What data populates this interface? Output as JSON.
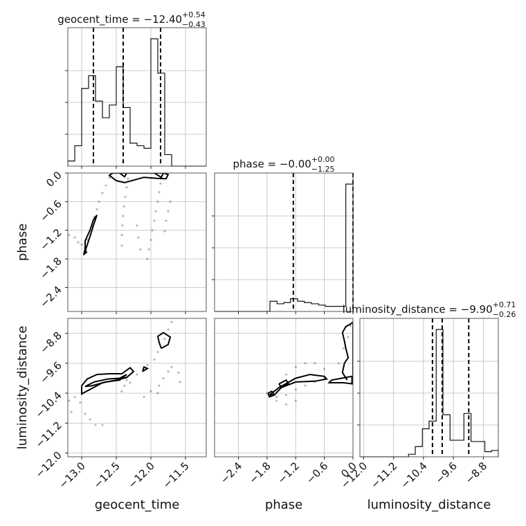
{
  "chart_data": {
    "type": "corner",
    "parameters": [
      "geocent_time",
      "phase",
      "luminosity_distance"
    ],
    "axis_labels": {
      "geocent_time": "geocent_time",
      "phase": "phase",
      "luminosity_distance": "luminosity_distance"
    },
    "ranges": {
      "geocent_time": [
        -13.2,
        -11.2
      ],
      "phase": [
        -2.9,
        0.0
      ],
      "luminosity_distance": [
        -12.1,
        -8.4
      ]
    },
    "ticks": {
      "geocent_time": {
        "values": [
          -13.0,
          -12.5,
          -12.0,
          -11.5
        ],
        "labels": [
          "−13.0",
          "−12.5",
          "−12.0",
          "−11.5"
        ]
      },
      "phase": {
        "values": [
          -2.4,
          -1.8,
          -1.2,
          -0.6,
          0.0
        ],
        "labels": [
          "−2.4",
          "−1.8",
          "−1.2",
          "−0.6",
          "0.0"
        ]
      },
      "luminosity_distance": {
        "values": [
          -12.0,
          -11.2,
          -10.4,
          -9.6,
          -8.8
        ],
        "labels": [
          "−12.0",
          "−11.2",
          "−10.4",
          "−9.6",
          "−8.8"
        ]
      }
    },
    "grid": true,
    "titles": [
      {
        "param": "geocent_time",
        "lead": "geocent_time = −12.40",
        "plus": "+0.54",
        "minus": "−0.43"
      },
      {
        "param": "phase",
        "lead": "phase = −0.00",
        "plus": "+0.00",
        "minus": "−1.25"
      },
      {
        "param": "luminosity_distance",
        "lead": "luminosity_distance = −9.90",
        "plus": "+0.71",
        "minus": "−0.26"
      }
    ],
    "marginals": [
      {
        "param": "geocent_time",
        "bin_edges": [
          -13.2,
          -13.1,
          -13.0,
          -12.9,
          -12.8,
          -12.7,
          -12.6,
          -12.5,
          -12.4,
          -12.3,
          -12.2,
          -12.1,
          -12.0,
          -11.9,
          -11.8,
          -11.7,
          -11.6,
          -11.5,
          -11.4,
          -11.3,
          -11.2
        ],
        "counts": [
          0.04,
          0.16,
          0.61,
          0.71,
          0.51,
          0.38,
          0.48,
          0.78,
          0.46,
          0.18,
          0.16,
          0.14,
          1.0,
          0.73,
          0.09,
          0.0,
          0.0,
          0.0,
          0.0,
          0.0
        ],
        "quantiles": [
          -12.83,
          -12.4,
          -11.86
        ]
      },
      {
        "param": "phase",
        "bin_edges": [
          -2.9,
          -2.76,
          -2.61,
          -2.47,
          -2.32,
          -2.17,
          -2.03,
          -1.89,
          -1.74,
          -1.59,
          -1.45,
          -1.31,
          -1.16,
          -1.02,
          -0.87,
          -0.72,
          -0.58,
          -0.43,
          -0.29,
          -0.15,
          0.0
        ],
        "counts": [
          0.0,
          0.0,
          0.0,
          0.0,
          0.0,
          0.0,
          0.0,
          0.0,
          0.08,
          0.06,
          0.07,
          0.1,
          0.08,
          0.07,
          0.06,
          0.05,
          0.04,
          0.04,
          0.04,
          1.0
        ],
        "quantiles": [
          -1.25,
          0.0
        ]
      },
      {
        "param": "luminosity_distance",
        "bin_edges": [
          -12.1,
          -11.91,
          -11.73,
          -11.54,
          -11.36,
          -11.17,
          -10.99,
          -10.8,
          -10.62,
          -10.43,
          -10.25,
          -10.06,
          -9.88,
          -9.69,
          -9.51,
          -9.32,
          -9.13,
          -8.95,
          -8.76,
          -8.58,
          -8.4
        ],
        "counts": [
          0.0,
          0.0,
          0.0,
          0.0,
          0.0,
          0.0,
          0.0,
          0.02,
          0.08,
          0.22,
          0.28,
          1.0,
          0.33,
          0.13,
          0.13,
          0.34,
          0.12,
          0.12,
          0.04,
          0.05
        ],
        "quantiles": [
          -10.16,
          -9.9,
          -9.19
        ]
      }
    ],
    "joint": [
      {
        "x": "geocent_time",
        "y": "phase",
        "contours": [
          {
            "x": [
              -12.95,
              -12.95,
              -12.88,
              -12.83,
              -12.78,
              -12.83,
              -12.88,
              -12.93,
              -12.97,
              -12.95
            ],
            "y": [
              -1.6,
              -1.42,
              -1.2,
              -0.98,
              -0.88,
              -1.1,
              -1.33,
              -1.55,
              -1.72,
              -1.6
            ]
          },
          {
            "x": [
              -12.97,
              -12.95,
              -12.93,
              -12.97
            ],
            "y": [
              -1.7,
              -1.6,
              -1.66,
              -1.7
            ]
          },
          {
            "x": [
              -12.55,
              -12.6,
              -12.5,
              -12.38,
              -12.25,
              -12.1,
              -11.92,
              -11.78,
              -11.75,
              -11.82,
              -12.2,
              -12.55
            ],
            "y": [
              0.0,
              -0.05,
              -0.16,
              -0.2,
              -0.15,
              -0.09,
              -0.11,
              -0.12,
              -0.03,
              0.0,
              0.0,
              0.0
            ]
          },
          {
            "x": [
              -12.45,
              -12.35,
              -12.38,
              -12.45
            ],
            "y": [
              0.0,
              0.0,
              -0.08,
              0.0
            ]
          },
          {
            "x": [
              -11.95,
              -11.82,
              -11.85,
              -11.95
            ],
            "y": [
              0.0,
              0.0,
              -0.09,
              0.0
            ]
          }
        ],
        "scatter": [
          [
            -13.18,
            -1.3
          ],
          [
            -13.1,
            -1.35
          ],
          [
            -13.05,
            -1.45
          ],
          [
            -13.0,
            -1.5
          ],
          [
            -12.92,
            -1.4
          ],
          [
            -12.85,
            -1.1
          ],
          [
            -12.82,
            -0.92
          ],
          [
            -12.78,
            -0.76
          ],
          [
            -12.75,
            -0.6
          ],
          [
            -12.7,
            -0.42
          ],
          [
            -12.65,
            -0.26
          ],
          [
            -12.6,
            -0.1
          ],
          [
            -12.42,
            -1.52
          ],
          [
            -12.42,
            -1.3
          ],
          [
            -12.41,
            -1.1
          ],
          [
            -12.4,
            -0.9
          ],
          [
            -12.39,
            -0.7
          ],
          [
            -12.37,
            -0.5
          ],
          [
            -12.35,
            -0.3
          ],
          [
            -12.33,
            -0.12
          ],
          [
            -12.05,
            -1.8
          ],
          [
            -12.03,
            -1.6
          ],
          [
            -12.0,
            -1.4
          ],
          [
            -11.98,
            -1.2
          ],
          [
            -11.95,
            -1.0
          ],
          [
            -11.93,
            -0.8
          ],
          [
            -11.9,
            -0.6
          ],
          [
            -11.88,
            -0.4
          ],
          [
            -11.86,
            -0.22
          ],
          [
            -11.8,
            -1.22
          ],
          [
            -11.78,
            -1.0
          ],
          [
            -11.75,
            -0.8
          ],
          [
            -11.72,
            -0.6
          ],
          [
            -12.2,
            -1.1
          ],
          [
            -12.18,
            -1.35
          ],
          [
            -12.15,
            -1.6
          ]
        ]
      },
      {
        "x": "geocent_time",
        "y": "luminosity_distance",
        "contours": [
          {
            "x": [
              -13.0,
              -12.92,
              -12.78,
              -12.6,
              -12.42,
              -12.3,
              -12.25,
              -12.35,
              -12.5,
              -12.7,
              -12.88,
              -13.0,
              -13.0
            ],
            "y": [
              -10.2,
              -10.02,
              -9.9,
              -9.88,
              -9.88,
              -9.72,
              -9.82,
              -9.98,
              -10.05,
              -10.12,
              -10.3,
              -10.42,
              -10.2
            ]
          },
          {
            "x": [
              -12.95,
              -12.82,
              -12.62,
              -12.45,
              -12.35,
              -12.45,
              -12.65,
              -12.85,
              -12.95
            ],
            "y": [
              -10.22,
              -10.1,
              -10.02,
              -10.0,
              -9.9,
              -10.05,
              -10.1,
              -10.2,
              -10.22
            ]
          },
          {
            "x": [
              -12.12,
              -12.05,
              -12.1,
              -12.12
            ],
            "y": [
              -9.82,
              -9.74,
              -9.7,
              -9.82
            ]
          },
          {
            "x": [
              -11.85,
              -11.75,
              -11.72,
              -11.82,
              -11.9,
              -11.88,
              -11.85
            ],
            "y": [
              -9.2,
              -9.1,
              -8.9,
              -8.78,
              -8.88,
              -9.05,
              -9.2
            ]
          }
        ],
        "scatter": [
          [
            -13.15,
            -10.9
          ],
          [
            -13.18,
            -10.6
          ],
          [
            -13.1,
            -10.5
          ],
          [
            -13.02,
            -10.65
          ],
          [
            -12.95,
            -10.95
          ],
          [
            -12.88,
            -11.1
          ],
          [
            -12.8,
            -11.25
          ],
          [
            -12.7,
            -11.25
          ],
          [
            -12.42,
            -10.35
          ],
          [
            -12.38,
            -10.2
          ],
          [
            -12.35,
            -10.05
          ],
          [
            -12.3,
            -10.12
          ],
          [
            -12.2,
            -9.9
          ],
          [
            -12.05,
            -9.65
          ],
          [
            -11.95,
            -9.5
          ],
          [
            -11.9,
            -9.3
          ],
          [
            -11.8,
            -8.95
          ],
          [
            -11.75,
            -8.7
          ],
          [
            -11.7,
            -8.5
          ],
          [
            -11.9,
            -10.4
          ],
          [
            -11.88,
            -10.2
          ],
          [
            -11.82,
            -10.0
          ],
          [
            -11.75,
            -9.82
          ],
          [
            -11.7,
            -9.7
          ],
          [
            -11.6,
            -9.85
          ],
          [
            -11.58,
            -10.1
          ],
          [
            -12.1,
            -10.5
          ],
          [
            -12.0,
            -10.35
          ]
        ]
      },
      {
        "x": "phase",
        "y": "luminosity_distance",
        "contours": [
          {
            "x": [
              -1.75,
              -1.55,
              -1.2,
              -0.9,
              -0.6,
              -0.55,
              -0.8,
              -1.2,
              -1.5,
              -1.65,
              -1.75
            ],
            "y": [
              -10.45,
              -10.25,
              -10.0,
              -9.9,
              -9.95,
              -10.02,
              -10.08,
              -10.1,
              -10.25,
              -10.45,
              -10.45
            ]
          },
          {
            "x": [
              -1.55,
              -1.4,
              -1.35,
              -1.5,
              -1.55
            ],
            "y": [
              -10.15,
              -10.05,
              -10.15,
              -10.25,
              -10.15
            ]
          },
          {
            "x": [
              -1.78,
              -1.7,
              -1.65,
              -1.75,
              -1.78
            ],
            "y": [
              -10.4,
              -10.35,
              -10.45,
              -10.5,
              -10.4
            ]
          },
          {
            "x": [
              -0.12,
              -0.22,
              -0.18,
              -0.1,
              -0.15,
              -0.18,
              -0.22,
              -0.15,
              -0.05,
              0.0,
              0.0
            ],
            "y": [
              -10.05,
              -9.85,
              -9.6,
              -9.45,
              -9.2,
              -9.0,
              -8.78,
              -8.62,
              -8.55,
              -8.5,
              -10.05
            ]
          },
          {
            "x": [
              -0.45,
              -0.15,
              -0.02,
              -0.02,
              -0.2,
              -0.5,
              -0.45
            ],
            "y": [
              -10.05,
              -9.98,
              -9.95,
              -10.15,
              -10.12,
              -10.12,
              -10.05
            ]
          }
        ],
        "scatter": [
          [
            -1.8,
            -10.4
          ],
          [
            -1.6,
            -10.5
          ],
          [
            -1.4,
            -10.45
          ],
          [
            -1.2,
            -10.3
          ],
          [
            -1.0,
            -10.2
          ],
          [
            -0.8,
            -10.1
          ],
          [
            -0.6,
            -10.0
          ],
          [
            -1.4,
            -9.9
          ],
          [
            -1.2,
            -9.7
          ],
          [
            -1.0,
            -9.6
          ],
          [
            -0.8,
            -9.6
          ],
          [
            -0.6,
            -9.75
          ],
          [
            -1.6,
            -10.6
          ],
          [
            -1.4,
            -10.7
          ],
          [
            -1.2,
            -10.6
          ],
          [
            -0.3,
            -9.6
          ],
          [
            -0.2,
            -9.2
          ],
          [
            -0.1,
            -8.9
          ],
          [
            -0.05,
            -8.6
          ],
          [
            -0.02,
            -10.1
          ]
        ]
      }
    ]
  }
}
